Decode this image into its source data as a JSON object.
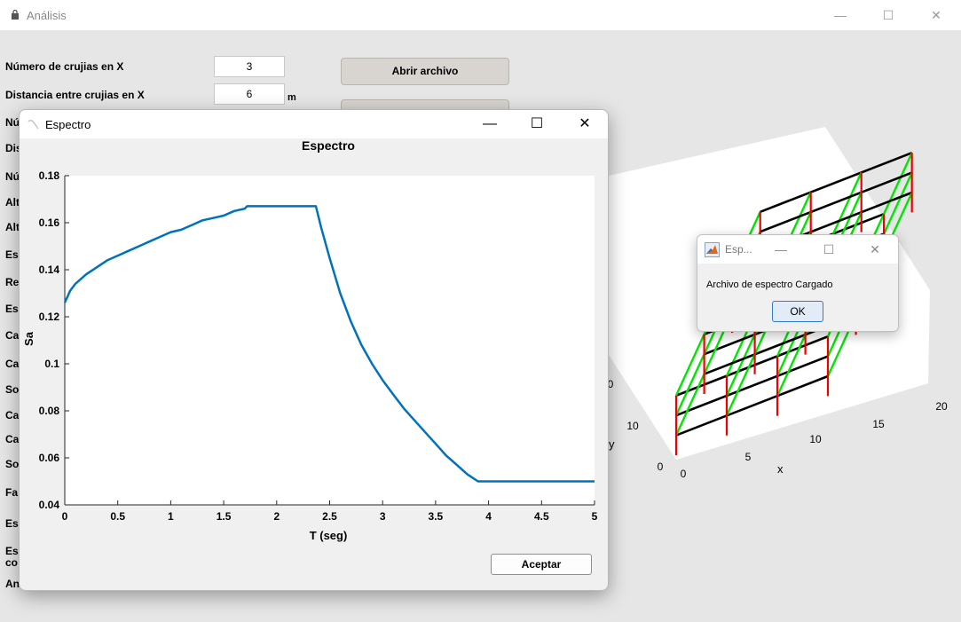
{
  "main_window": {
    "title": "Análisis",
    "controls": {
      "minimize": "—",
      "maximize": "☐",
      "close": "✕"
    }
  },
  "form": {
    "fields": [
      {
        "label": "Número de crujias en X",
        "value": "3"
      },
      {
        "label": "Distancia entre crujias en X",
        "value": "6",
        "unit": "m"
      }
    ],
    "obscured_labels": [
      "Nú",
      "Dis",
      "Nú",
      "Alt",
      "Alt",
      "Es",
      "Re",
      "Es",
      "Ca",
      "Ca",
      "So",
      "Ca",
      "Ca",
      "So",
      "Fa",
      "Es",
      "Es",
      "co",
      "An"
    ],
    "open_file_button": "Abrir archivo"
  },
  "frame3d": {
    "x_ticks": [
      "0",
      "5",
      "10",
      "15",
      "20"
    ],
    "y_ticks": [
      "0",
      "10",
      "0"
    ],
    "xlabel": "x",
    "ylabel": "y",
    "colors": {
      "beam_x": "#000000",
      "beam_y": "#00e600",
      "column": "#ee0000"
    }
  },
  "spectrum_window": {
    "title": "Espectro",
    "controls": {
      "minimize": "—",
      "maximize": "☐",
      "close": "✕"
    },
    "accept_button": "Aceptar"
  },
  "chart_data": {
    "type": "line",
    "title": "Espectro",
    "xlabel": "T (seg)",
    "ylabel": "Sa",
    "xlim": [
      0,
      5
    ],
    "ylim": [
      0.04,
      0.18
    ],
    "x_ticks": [
      "0",
      "0.5",
      "1",
      "1.5",
      "2",
      "2.5",
      "3",
      "3.5",
      "4",
      "4.5",
      "5"
    ],
    "y_ticks": [
      "0.04",
      "0.06",
      "0.08",
      "0.1",
      "0.12",
      "0.14",
      "0.16",
      "0.18"
    ],
    "grid": false,
    "color": "#0072bd",
    "x": [
      0,
      0.05,
      0.1,
      0.2,
      0.3,
      0.4,
      0.5,
      0.6,
      0.7,
      0.8,
      0.9,
      1.0,
      1.1,
      1.2,
      1.3,
      1.4,
      1.5,
      1.6,
      1.7,
      1.72,
      2.0,
      2.2,
      2.37,
      2.42,
      2.5,
      2.6,
      2.7,
      2.8,
      2.9,
      3.0,
      3.1,
      3.2,
      3.3,
      3.4,
      3.5,
      3.6,
      3.7,
      3.8,
      3.9,
      4.0,
      4.5,
      5.0
    ],
    "y": [
      0.126,
      0.131,
      0.134,
      0.138,
      0.141,
      0.144,
      0.146,
      0.148,
      0.15,
      0.152,
      0.154,
      0.156,
      0.157,
      0.159,
      0.161,
      0.162,
      0.163,
      0.165,
      0.166,
      0.167,
      0.167,
      0.167,
      0.167,
      0.158,
      0.145,
      0.13,
      0.118,
      0.108,
      0.1,
      0.093,
      0.087,
      0.081,
      0.076,
      0.071,
      0.066,
      0.061,
      0.057,
      0.053,
      0.05,
      0.05,
      0.05,
      0.05
    ]
  },
  "message_box": {
    "title": "Esp...",
    "message": "Archivo de espectro Cargado",
    "ok_button": "OK",
    "controls": {
      "minimize": "—",
      "maximize": "☐",
      "close": "✕"
    }
  }
}
